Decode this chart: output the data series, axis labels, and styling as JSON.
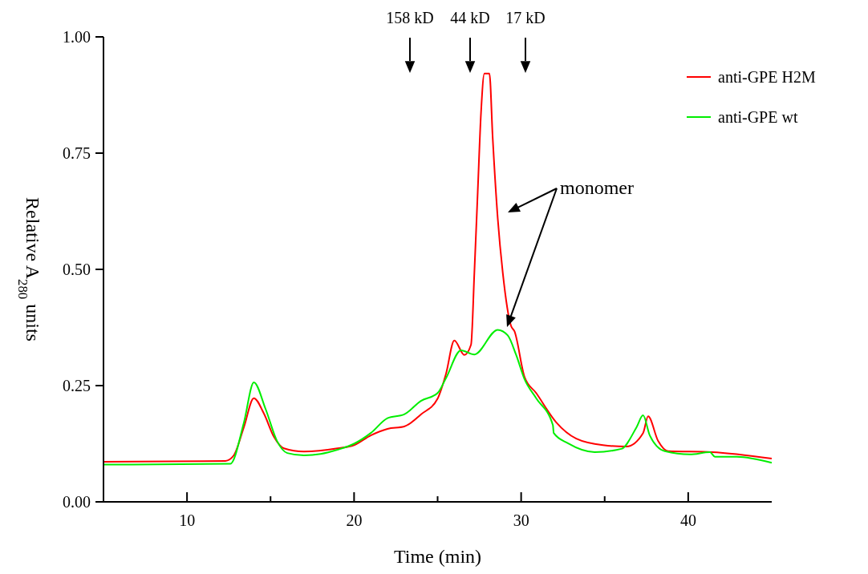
{
  "chart_data": {
    "type": "line",
    "xlabel": "Time (min)",
    "ylabel": "Relative A$_{280}$ units",
    "xlim": [
      5,
      45
    ],
    "ylim": [
      0,
      1
    ],
    "xticks": [
      10,
      20,
      30,
      40,
      {
        "value": 15,
        "label": null
      },
      {
        "value": 25,
        "label": null
      },
      {
        "value": 35,
        "label": null
      }
    ],
    "yticks": [
      {
        "value": 0,
        "label": "0.00"
      },
      {
        "value": 0.25,
        "label": "0.25"
      },
      {
        "value": 0.5,
        "label": "0.50"
      },
      {
        "value": 0.75,
        "label": "0.75"
      },
      {
        "value": 1,
        "label": "1.00"
      }
    ],
    "grid": false,
    "legend": "top right",
    "line_style": "solid",
    "marker": "none",
    "annotations": [
      "158 kD",
      "44 kD",
      "17 kD",
      "monomer"
    ],
    "series": [
      {
        "name": "anti-GPE H2M",
        "color": "#ff0000",
        "x": [
          5,
          12.3,
          12.8,
          13.4,
          14.0,
          14.6,
          15.2,
          15.8,
          17,
          19,
          20,
          21,
          22,
          23,
          24,
          25,
          25.5,
          26.0,
          26.6,
          27.0,
          27.2,
          27.4,
          27.6,
          27.8,
          28.1,
          28.3,
          28.6,
          28.9,
          29.4,
          29.6,
          30.2,
          30.9,
          32.1,
          33.3,
          34.9,
          36.3,
          37.3,
          37.6,
          38.2,
          38.8,
          41.4,
          45
        ],
        "values": [
          0.086,
          0.088,
          0.1,
          0.16,
          0.223,
          0.19,
          0.14,
          0.115,
          0.108,
          0.115,
          0.122,
          0.143,
          0.157,
          0.162,
          0.188,
          0.222,
          0.275,
          0.347,
          0.316,
          0.338,
          0.493,
          0.666,
          0.838,
          0.921,
          0.921,
          0.781,
          0.609,
          0.493,
          0.378,
          0.367,
          0.269,
          0.234,
          0.171,
          0.136,
          0.122,
          0.119,
          0.148,
          0.184,
          0.131,
          0.109,
          0.107,
          0.093
        ]
      },
      {
        "name": "anti-GPE wt",
        "color": "#00ee00",
        "x": [
          5,
          12.6,
          13.4,
          14.0,
          14.7,
          15.4,
          16,
          17,
          18,
          19,
          20,
          21,
          22,
          23,
          24,
          25,
          25.5,
          26.4,
          27.2,
          28.6,
          29.2,
          29.7,
          30.2,
          30.9,
          31.9,
          31.95,
          32.8,
          34.4,
          36.0,
          36.9,
          37.3,
          37.7,
          38.6,
          40.1,
          41.3,
          41.6,
          42.9,
          45
        ],
        "values": [
          0.08,
          0.082,
          0.17,
          0.257,
          0.2,
          0.13,
          0.105,
          0.1,
          0.103,
          0.112,
          0.125,
          0.148,
          0.18,
          0.188,
          0.217,
          0.234,
          0.266,
          0.326,
          0.317,
          0.37,
          0.358,
          0.316,
          0.264,
          0.223,
          0.165,
          0.148,
          0.126,
          0.107,
          0.114,
          0.16,
          0.186,
          0.143,
          0.109,
          0.102,
          0.107,
          0.097,
          0.097,
          0.084
        ]
      }
    ]
  }
}
